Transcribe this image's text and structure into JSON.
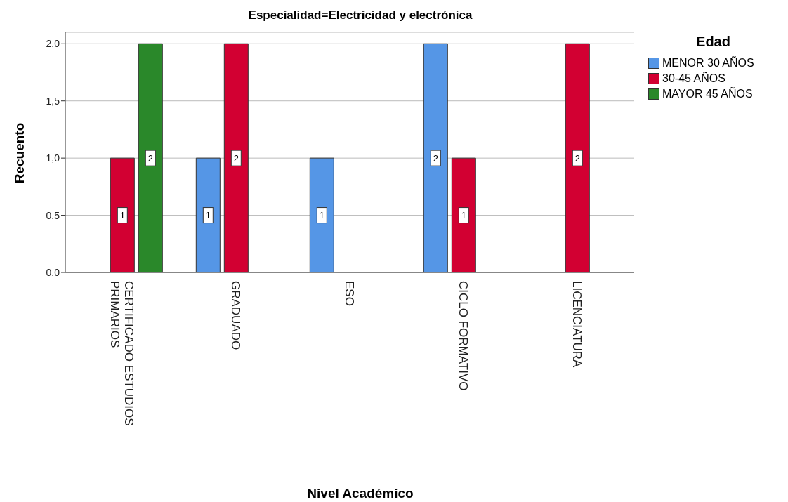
{
  "chart_data": {
    "type": "bar",
    "title": "Especialidad=Electricidad y electrónica",
    "xlabel": "Nivel Académico",
    "ylabel": "Recuento",
    "legend_title": "Edad",
    "categories": [
      "CERTIFICADO ESTUDIOS PRIMARIOS",
      "GRADUADO",
      "ESO",
      "CICLO FORMATIVO",
      "LICENCIATURA"
    ],
    "series": [
      {
        "name": "MENOR 30 AÑOS",
        "color": "#5596e6",
        "values": [
          null,
          1,
          1,
          2,
          null
        ]
      },
      {
        "name": "30-45 AÑOS",
        "color": "#d20032",
        "values": [
          1,
          2,
          null,
          1,
          2
        ]
      },
      {
        "name": "MAYOR 45 AÑOS",
        "color": "#2a882a",
        "values": [
          2,
          null,
          null,
          null,
          null
        ]
      }
    ],
    "ylim": [
      0,
      2.1
    ],
    "yticks": [
      {
        "value": 0,
        "label": "0,0"
      },
      {
        "value": 0.5,
        "label": "0,5"
      },
      {
        "value": 1,
        "label": "1,0"
      },
      {
        "value": 1.5,
        "label": "1,5"
      },
      {
        "value": 2,
        "label": "2,0"
      }
    ],
    "grid": "y",
    "legend": "top right",
    "data_labels": true
  }
}
